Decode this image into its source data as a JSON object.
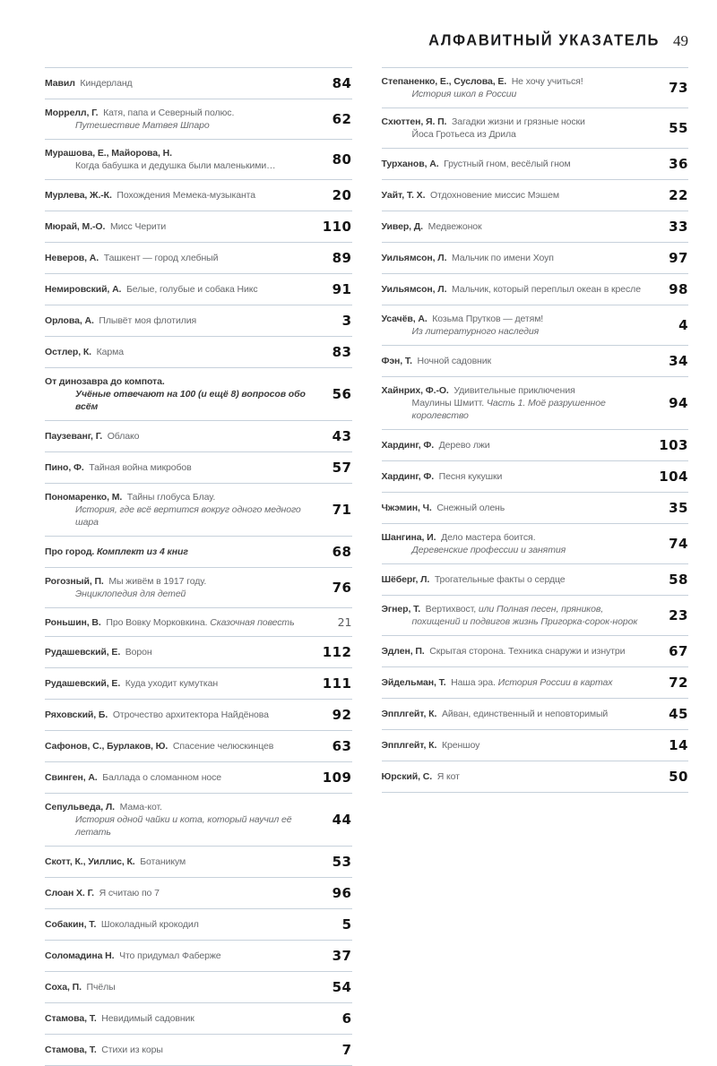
{
  "header": {
    "title": "АЛФАВИТНЫЙ УКАЗАТЕЛЬ",
    "folio": "49"
  },
  "colors": {
    "divider": "#c7d1db",
    "author_text": "#3a3a3a",
    "title_text": "#67696c",
    "page_number": "#141414"
  },
  "columns": {
    "left": [
      {
        "l1": [
          {
            "t": "Мавил",
            "b": 1
          },
          {
            "t": "  Киндерланд"
          }
        ],
        "p": "84"
      },
      {
        "l1": [
          {
            "t": "Моррелл, Г.",
            "b": 1
          },
          {
            "t": "  Катя, папа и Северный полюс."
          }
        ],
        "l2": [
          {
            "t": "Путешествие Матвея Шпаро",
            "i": 1
          }
        ],
        "p": "62"
      },
      {
        "l1": [
          {
            "t": "Мурашова, Е., Майорова, Н.",
            "b": 1
          }
        ],
        "l2": [
          {
            "t": "Когда бабушка и дедушка были маленькими…"
          }
        ],
        "p": "80"
      },
      {
        "l1": [
          {
            "t": "Мурлева, Ж.-К.",
            "b": 1
          },
          {
            "t": "  Похождения Мемека-музыканта"
          }
        ],
        "p": "20"
      },
      {
        "l1": [
          {
            "t": "Мюрай, М.-О.",
            "b": 1
          },
          {
            "t": "  Мисс Черити"
          }
        ],
        "p": "110"
      },
      {
        "l1": [
          {
            "t": "Неверов, А.",
            "b": 1
          },
          {
            "t": "  Ташкент — город хлебный"
          }
        ],
        "p": "89"
      },
      {
        "l1": [
          {
            "t": "Немировский, А.",
            "b": 1
          },
          {
            "t": "  Белые, голубые и собака Никс"
          }
        ],
        "p": "91"
      },
      {
        "l1": [
          {
            "t": "Орлова, А.",
            "b": 1
          },
          {
            "t": "  Плывёт моя флотилия"
          }
        ],
        "p": "3"
      },
      {
        "l1": [
          {
            "t": "Остлер, К.",
            "b": 1
          },
          {
            "t": "  Карма"
          }
        ],
        "p": "83"
      },
      {
        "l1": [
          {
            "t": "От динозавра до компота.",
            "b": 1
          }
        ],
        "l2": [
          {
            "t": "Учёные отвечают на 100 (и ещё 8) вопросов обо всём",
            "b": 1,
            "i": 1
          }
        ],
        "p": "56"
      },
      {
        "l1": [
          {
            "t": "Паузеванг, Г.",
            "b": 1
          },
          {
            "t": "  Облако"
          }
        ],
        "p": "43"
      },
      {
        "l1": [
          {
            "t": "Пино, Ф.",
            "b": 1
          },
          {
            "t": "  Тайная война микробов"
          }
        ],
        "p": "57"
      },
      {
        "l1": [
          {
            "t": "Пономаренко, М.",
            "b": 1
          },
          {
            "t": "  Тайны глобуса Блау."
          }
        ],
        "l2": [
          {
            "t": "История, где всё вертится вокруг одного медного шара",
            "i": 1
          }
        ],
        "p": "71"
      },
      {
        "l1": [
          {
            "t": "Про город.",
            "b": 1
          },
          {
            "t": " Комплект из 4 книг",
            "b": 1,
            "i": 1
          }
        ],
        "p": "68"
      },
      {
        "l1": [
          {
            "t": "Рогозный, П.",
            "b": 1
          },
          {
            "t": "  Мы живём в 1917 году."
          }
        ],
        "l2": [
          {
            "t": "Энциклопедия для детей",
            "i": 1
          }
        ],
        "p": "76"
      },
      {
        "l1": [
          {
            "t": "Роньшин, В.",
            "b": 1
          },
          {
            "t": "  Про Вовку Морковкина. "
          },
          {
            "t": "Сказочная повесть",
            "i": 1
          }
        ],
        "p": "21",
        "pp": 1
      },
      {
        "l1": [
          {
            "t": "Рудашевский, Е.",
            "b": 1
          },
          {
            "t": "  Ворон"
          }
        ],
        "p": "112"
      },
      {
        "l1": [
          {
            "t": "Рудашевский, Е.",
            "b": 1
          },
          {
            "t": "  Куда уходит кумуткан"
          }
        ],
        "p": "111"
      },
      {
        "l1": [
          {
            "t": "Ряховский, Б.",
            "b": 1
          },
          {
            "t": "  Отрочество архитектора Найдёнова"
          }
        ],
        "p": "92"
      },
      {
        "l1": [
          {
            "t": "Сафонов, С., Бурлаков, Ю.",
            "b": 1
          },
          {
            "t": "  Спасение челюскинцев"
          }
        ],
        "p": "63"
      },
      {
        "l1": [
          {
            "t": "Свинген, А.",
            "b": 1
          },
          {
            "t": "  Баллада о сломанном носе"
          }
        ],
        "p": "109"
      },
      {
        "l1": [
          {
            "t": "Сепульведа, Л.",
            "b": 1
          },
          {
            "t": "  Мама-кот."
          }
        ],
        "l2": [
          {
            "t": "История одной чайки и кота, который научил её летать",
            "i": 1
          }
        ],
        "p": "44"
      },
      {
        "l1": [
          {
            "t": "Скотт, К., Уиллис, К.",
            "b": 1
          },
          {
            "t": "  Ботаникум"
          }
        ],
        "p": "53"
      },
      {
        "l1": [
          {
            "t": "Слоан Х. Г.",
            "b": 1
          },
          {
            "t": "  Я считаю по 7"
          }
        ],
        "p": "96"
      },
      {
        "l1": [
          {
            "t": "Собакин, Т.",
            "b": 1
          },
          {
            "t": "  Шоколадный крокодил"
          }
        ],
        "p": "5"
      },
      {
        "l1": [
          {
            "t": "Соломадина Н.",
            "b": 1
          },
          {
            "t": "  Что придумал Фаберже"
          }
        ],
        "p": "37"
      },
      {
        "l1": [
          {
            "t": "Соха, П.",
            "b": 1
          },
          {
            "t": "  Пчёлы"
          }
        ],
        "p": "54"
      },
      {
        "l1": [
          {
            "t": "Стамова, Т.",
            "b": 1
          },
          {
            "t": "  Невидимый садовник"
          }
        ],
        "p": "6"
      },
      {
        "l1": [
          {
            "t": "Стамова, Т.",
            "b": 1
          },
          {
            "t": "  Стихи из коры"
          }
        ],
        "p": "7"
      }
    ],
    "right": [
      {
        "l1": [
          {
            "t": "Степаненко, Е., Суслова, Е.",
            "b": 1
          },
          {
            "t": "  Не хочу учиться!"
          }
        ],
        "l2": [
          {
            "t": "История школ в России",
            "i": 1
          }
        ],
        "p": "73"
      },
      {
        "l1": [
          {
            "t": "Схюттен, Я. П.",
            "b": 1
          },
          {
            "t": "  Загадки жизни и грязные носки"
          }
        ],
        "l2": [
          {
            "t": "Йоса Гротьеса из Дрила"
          }
        ],
        "p": "55"
      },
      {
        "l1": [
          {
            "t": "Турханов, А.",
            "b": 1
          },
          {
            "t": "  Грустный гном, весёлый гном"
          }
        ],
        "p": "36"
      },
      {
        "l1": [
          {
            "t": "Уайт, Т. Х.",
            "b": 1
          },
          {
            "t": "  Отдохновение миссис Мэшем"
          }
        ],
        "p": "22"
      },
      {
        "l1": [
          {
            "t": "Уивер, Д.",
            "b": 1
          },
          {
            "t": "  Медвежонок"
          }
        ],
        "p": "33"
      },
      {
        "l1": [
          {
            "t": "Уильямсон, Л.",
            "b": 1
          },
          {
            "t": "  Мальчик по имени Хоуп"
          }
        ],
        "p": "97"
      },
      {
        "l1": [
          {
            "t": "Уильямсон, Л.",
            "b": 1
          },
          {
            "t": "  Мальчик, который переплыл океан в кресле"
          }
        ],
        "p": "98"
      },
      {
        "l1": [
          {
            "t": "Усачёв, А.",
            "b": 1
          },
          {
            "t": "  Козьма Прутков — детям!"
          }
        ],
        "l2": [
          {
            "t": "Из литературного наследия",
            "i": 1
          }
        ],
        "p": "4"
      },
      {
        "l1": [
          {
            "t": "Фэн, Т.",
            "b": 1
          },
          {
            "t": "  Ночной садовник"
          }
        ],
        "p": "34"
      },
      {
        "l1": [
          {
            "t": "Хайнрих, Ф.-О.",
            "b": 1
          },
          {
            "t": "  Удивительные приключения"
          }
        ],
        "l2": [
          {
            "t": "Маулины Шмитт. "
          },
          {
            "t": "Часть 1. Моё разрушенное королевство",
            "i": 1
          }
        ],
        "p": "94"
      },
      {
        "l1": [
          {
            "t": "Хардинг, Ф.",
            "b": 1
          },
          {
            "t": "  Дерево лжи"
          }
        ],
        "p": "103"
      },
      {
        "l1": [
          {
            "t": "Хардинг, Ф.",
            "b": 1
          },
          {
            "t": "  Песня кукушки"
          }
        ],
        "p": "104"
      },
      {
        "l1": [
          {
            "t": "Чжэмин, Ч.",
            "b": 1
          },
          {
            "t": "  Снежный олень"
          }
        ],
        "p": "35"
      },
      {
        "l1": [
          {
            "t": "Шангина, И.",
            "b": 1
          },
          {
            "t": "  Дело мастера боится."
          }
        ],
        "l2": [
          {
            "t": "Деревенские профессии и занятия",
            "i": 1
          }
        ],
        "p": "74"
      },
      {
        "l1": [
          {
            "t": "Шёберг, Л.",
            "b": 1
          },
          {
            "t": "  Трогательные факты о сердце"
          }
        ],
        "p": "58"
      },
      {
        "l1": [
          {
            "t": "Эгнер, Т.",
            "b": 1
          },
          {
            "t": "  Вертихвост, "
          },
          {
            "t": "или Полная песен, пряников,",
            "i": 1
          }
        ],
        "l2": [
          {
            "t": "похищений и подвигов жизнь Пригорка-сорок-норок",
            "i": 1
          }
        ],
        "p": "23"
      },
      {
        "l1": [
          {
            "t": "Эдлен, П.",
            "b": 1
          },
          {
            "t": "  Скрытая сторона. Техника снаружи и изнутри"
          }
        ],
        "p": "67"
      },
      {
        "l1": [
          {
            "t": "Эйдельман, Т.",
            "b": 1
          },
          {
            "t": "  Наша эра. "
          },
          {
            "t": "История России в картах",
            "i": 1
          }
        ],
        "p": "72"
      },
      {
        "l1": [
          {
            "t": "Эпплгейт, К.",
            "b": 1
          },
          {
            "t": "  Айван, единственный и неповторимый"
          }
        ],
        "p": "45"
      },
      {
        "l1": [
          {
            "t": "Эпплгейт, К.",
            "b": 1
          },
          {
            "t": "  Креншоу"
          }
        ],
        "p": "14"
      },
      {
        "l1": [
          {
            "t": "Юрский, С.",
            "b": 1
          },
          {
            "t": "  Я кот"
          }
        ],
        "p": "50"
      }
    ]
  }
}
